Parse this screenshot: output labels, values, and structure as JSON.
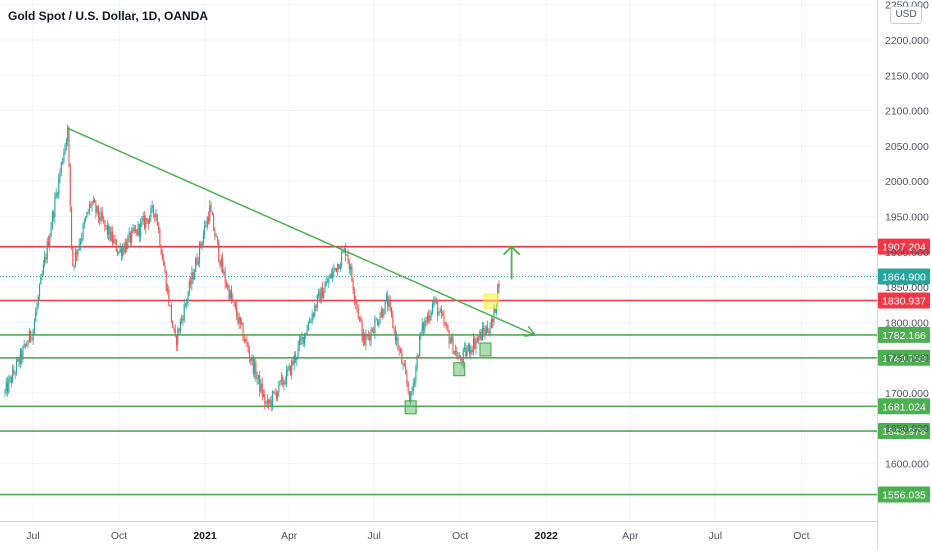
{
  "header": {
    "title": "Gold Spot / U.S. Dollar, 1D, OANDA",
    "currency_badge": "USD"
  },
  "colors": {
    "up": "#26a69a",
    "down": "#ef5350",
    "trendline": "#4caf50",
    "resistance": "#f23645",
    "support": "#4caf50",
    "last_price": "#26a69a",
    "highlight": "#ffeb3b"
  },
  "chart_data": {
    "type": "line",
    "chart_style": "candlestick",
    "grid": true,
    "price_axis_side": "right",
    "ylim": [
      1540,
      2255
    ],
    "x_tick_labels": [
      "Jul",
      "Oct",
      "2021",
      "Apr",
      "Jul",
      "Oct",
      "2022",
      "Apr",
      "Jul",
      "Oct"
    ],
    "x_tick_dates": [
      "2020-07-01",
      "2020-10-01",
      "2021-01-01",
      "2021-04-01",
      "2021-07-01",
      "2021-10-01",
      "2022-01-01",
      "2022-04-01",
      "2022-07-01",
      "2022-10-01"
    ],
    "y_ticks": [
      1600,
      1650,
      1700,
      1750,
      1800,
      1850,
      1900,
      1950,
      2000,
      2050,
      2100,
      2150,
      2200,
      2250
    ],
    "y_tick_labels": [
      "1600.000",
      "1650.000",
      "1700.000",
      "1750.000",
      "1800.000",
      "1850.000",
      "1900.000",
      "1950.000",
      "2000.000",
      "2050.000",
      "2100.000",
      "2150.000",
      "2200.000",
      "2250.000"
    ],
    "series": [
      {
        "x": [
          "2020-06-01",
          "2020-07-01",
          "2020-08-07",
          "2020-08-12",
          "2020-09-01",
          "2020-10-01",
          "2020-11-09",
          "2020-11-30",
          "2021-01-06",
          "2021-01-20",
          "2021-03-08",
          "2021-04-01",
          "2021-05-01",
          "2021-06-01",
          "2021-06-20",
          "2021-07-15",
          "2021-08-09",
          "2021-08-20",
          "2021-09-03",
          "2021-09-30",
          "2021-10-15",
          "2021-11-05",
          "2021-11-12"
        ],
        "y": [
          1700,
          1790,
          2075,
          1880,
          1970,
          1900,
          1960,
          1770,
          1960,
          1870,
          1680,
          1730,
          1830,
          1905,
          1770,
          1830,
          1690,
          1785,
          1830,
          1745,
          1770,
          1800,
          1864.9
        ]
      }
    ],
    "horizontal_levels": [
      {
        "value": "1907.204",
        "kind": "resistance"
      },
      {
        "value": "1830.937",
        "kind": "resistance"
      },
      {
        "value": "1782.166",
        "kind": "support"
      },
      {
        "value": "1749.753",
        "kind": "support"
      },
      {
        "value": "1681.024",
        "kind": "support"
      },
      {
        "value": "1645.976",
        "kind": "support"
      },
      {
        "value": "1556.035",
        "kind": "support"
      }
    ],
    "last_price": "1864.900",
    "trendline": {
      "points": [
        [
          "2020-08-07",
          2075
        ],
        [
          "2021-12-20",
          1782
        ]
      ],
      "arrow": true
    },
    "up_arrow_target": 1907.204,
    "markers": [
      {
        "date": "2021-08-09",
        "price": 1681,
        "color": "support"
      },
      {
        "date": "2021-09-30",
        "price": 1735,
        "color": "support"
      },
      {
        "date": "2021-10-28",
        "price": 1763,
        "color": "support"
      },
      {
        "date": "2021-11-03",
        "price": 1830,
        "color": "highlight"
      }
    ]
  }
}
